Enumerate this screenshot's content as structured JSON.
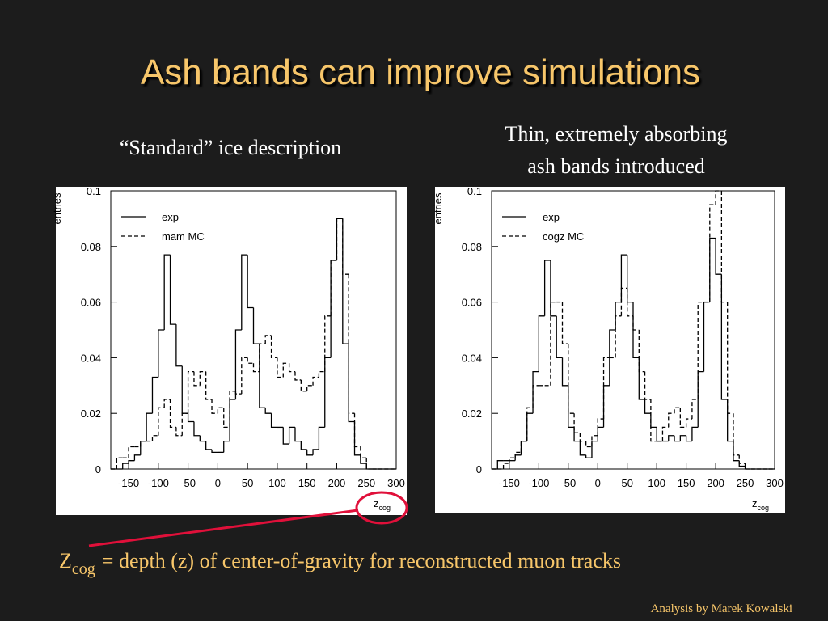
{
  "title": "Ash bands can improve simulations",
  "annotation": {
    "symbol": "Z",
    "subscript": "cog",
    "text": "= depth (z) of center-of-gravity for reconstructed muon tracks"
  },
  "footer": "Analysis by Marek Kowalski",
  "chart_data": [
    {
      "type": "histogram",
      "title_lines": [
        "“Standard” ice description"
      ],
      "xlabel": "z",
      "xlabel_sub": "cog",
      "ylabel": "entries",
      "bins": [
        -180,
        -170,
        -160,
        -150,
        -140,
        -130,
        -120,
        -110,
        -100,
        -90,
        -80,
        -70,
        -60,
        -50,
        -40,
        -30,
        -20,
        -10,
        0,
        10,
        20,
        30,
        40,
        50,
        60,
        70,
        80,
        90,
        100,
        110,
        120,
        130,
        140,
        150,
        160,
        170,
        180,
        190,
        200,
        210,
        220,
        230,
        240,
        250,
        260,
        270,
        280,
        290,
        300
      ],
      "series": [
        {
          "name": "exp",
          "color": "#000000",
          "linestyle": "solid",
          "values": [
            0,
            0,
            0.002,
            0.003,
            0.005,
            0.01,
            0.02,
            0.033,
            0.05,
            0.077,
            0.052,
            0.037,
            0.02,
            0.017,
            0.012,
            0.01,
            0.007,
            0.006,
            0.006,
            0.01,
            0.025,
            0.05,
            0.077,
            0.058,
            0.045,
            0.022,
            0.02,
            0.015,
            0.015,
            0.009,
            0.015,
            0.01,
            0.007,
            0.005,
            0.007,
            0.015,
            0.04,
            0.075,
            0.09,
            0.045,
            0.017,
            0.005,
            0.002,
            0,
            0,
            0,
            0,
            0
          ]
        },
        {
          "name": "mam MC",
          "color": "#000000",
          "linestyle": "dashed",
          "values": [
            0,
            0.004,
            0.004,
            0.008,
            0.008,
            0.01,
            0.01,
            0.012,
            0.022,
            0.025,
            0.015,
            0.012,
            0.02,
            0.035,
            0.03,
            0.035,
            0.025,
            0.02,
            0.022,
            0.015,
            0.028,
            0.027,
            0.04,
            0.038,
            0.035,
            0.045,
            0.048,
            0.04,
            0.033,
            0.038,
            0.035,
            0.032,
            0.028,
            0.03,
            0.033,
            0.035,
            0.055,
            0.075,
            0.09,
            0.07,
            0.02,
            0.008,
            0.004,
            0,
            0,
            0,
            0,
            0
          ]
        }
      ],
      "xlim": [
        -180,
        300
      ],
      "xticks": [
        -150,
        -100,
        -50,
        0,
        50,
        100,
        150,
        200,
        250,
        300
      ],
      "ylim": [
        0,
        0.1
      ],
      "yticks": [
        0,
        0.02,
        0.04,
        0.06,
        0.08,
        0.1
      ],
      "grid": false,
      "legend": "upper left"
    },
    {
      "type": "histogram",
      "title_lines": [
        "Thin, extremely absorbing",
        "ash bands introduced"
      ],
      "xlabel": "z",
      "xlabel_sub": "cog",
      "ylabel": "entries",
      "bins": [
        -180,
        -170,
        -160,
        -150,
        -140,
        -130,
        -120,
        -110,
        -100,
        -90,
        -80,
        -70,
        -60,
        -50,
        -40,
        -30,
        -20,
        -10,
        0,
        10,
        20,
        30,
        40,
        50,
        60,
        70,
        80,
        90,
        100,
        110,
        120,
        130,
        140,
        150,
        160,
        170,
        180,
        190,
        200,
        210,
        220,
        230,
        240,
        250,
        260,
        270,
        280,
        290,
        300
      ],
      "series": [
        {
          "name": "exp",
          "color": "#000000",
          "linestyle": "solid",
          "values": [
            0,
            0.003,
            0.003,
            0.003,
            0.005,
            0.01,
            0.02,
            0.035,
            0.055,
            0.075,
            0.055,
            0.04,
            0.03,
            0.015,
            0.01,
            0.005,
            0.004,
            0.01,
            0.015,
            0.03,
            0.05,
            0.06,
            0.077,
            0.06,
            0.04,
            0.025,
            0.02,
            0.015,
            0.01,
            0.01,
            0.012,
            0.01,
            0.012,
            0.01,
            0.015,
            0.035,
            0.06,
            0.083,
            0.07,
            0.025,
            0.01,
            0.003,
            0.001,
            0,
            0,
            0,
            0,
            0
          ]
        },
        {
          "name": "cogz MC",
          "color": "#000000",
          "linestyle": "dashed",
          "values": [
            0,
            0,
            0.002,
            0.004,
            0.006,
            0.01,
            0.022,
            0.03,
            0.03,
            0.03,
            0.06,
            0.06,
            0.045,
            0.02,
            0.013,
            0.01,
            0.008,
            0.012,
            0.018,
            0.04,
            0.04,
            0.055,
            0.065,
            0.055,
            0.05,
            0.035,
            0.025,
            0.01,
            0.01,
            0.015,
            0.02,
            0.022,
            0.015,
            0.018,
            0.025,
            0.06,
            0.06,
            0.095,
            0.1,
            0.06,
            0.02,
            0.005,
            0.002,
            0,
            0,
            0,
            0,
            0
          ]
        }
      ],
      "xlim": [
        -180,
        300
      ],
      "xticks": [
        -150,
        -100,
        -50,
        0,
        50,
        100,
        150,
        200,
        250,
        300
      ],
      "ylim": [
        0,
        0.1
      ],
      "yticks": [
        0,
        0.02,
        0.04,
        0.06,
        0.08,
        0.1
      ],
      "grid": false,
      "legend": "upper left"
    }
  ]
}
